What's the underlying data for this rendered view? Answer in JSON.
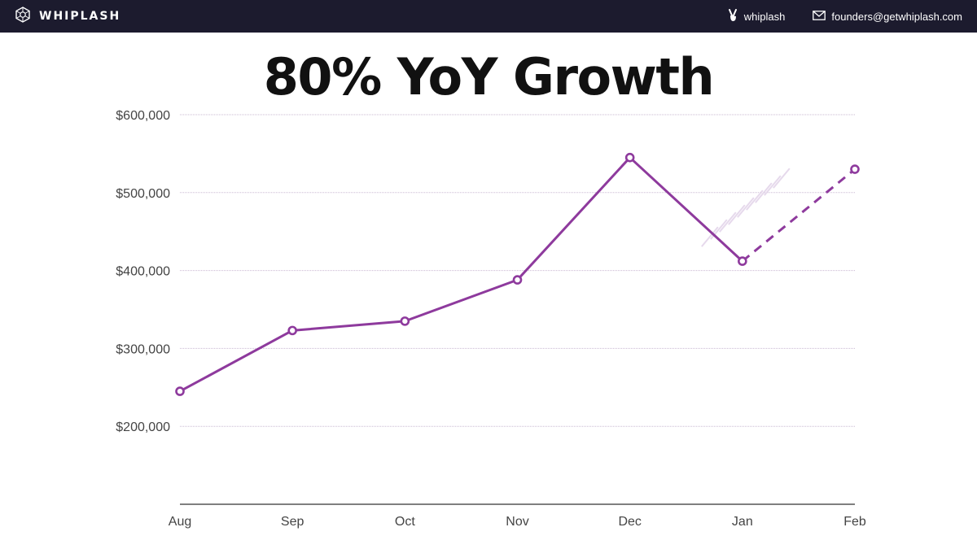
{
  "header": {
    "brand": "WHIPLASH",
    "handle": "whiplash",
    "email": "founders@getwhiplash.com",
    "icons": [
      "whiplash-logo-icon",
      "peace-hand-icon",
      "envelope-icon"
    ]
  },
  "colors": {
    "topbar": "#1c1b2e",
    "series": "#8e3a9d",
    "grid": "#c9b8d2",
    "hatch": "#e6d9ec"
  },
  "chart_data": {
    "type": "line",
    "title": "80% YoY Growth",
    "xlabel": "",
    "ylabel": "",
    "categories": [
      "Aug",
      "Sep",
      "Oct",
      "Nov",
      "Dec",
      "Jan",
      "Feb"
    ],
    "series": [
      {
        "values": [
          245000,
          323000,
          335000,
          388000,
          545000,
          412000,
          530000
        ],
        "line_style": [
          "solid",
          "solid",
          "solid",
          "solid",
          "solid",
          "dashed"
        ]
      }
    ],
    "ylim": [
      100000,
      600000
    ],
    "yticks": [
      200000,
      300000,
      400000,
      500000,
      600000
    ],
    "ytick_labels": [
      "$200,000",
      "$300,000",
      "$400,000",
      "$500,000",
      "$600,000"
    ],
    "grid": true,
    "legend": "none"
  }
}
